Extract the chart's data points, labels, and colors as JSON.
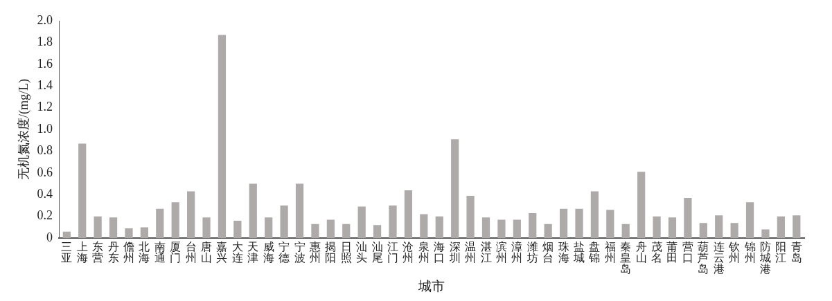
{
  "chart_data": {
    "type": "bar",
    "xlabel": "城市",
    "ylabel": "无机氮浓度/(mg/L)",
    "categories": [
      "三亚",
      "上海",
      "东营",
      "丹东",
      "儋州",
      "北海",
      "南通",
      "厦门",
      "台州",
      "唐山",
      "嘉兴",
      "大连",
      "天津",
      "威海",
      "宁德",
      "宁波",
      "惠州",
      "揭阳",
      "日照",
      "汕头",
      "汕尾",
      "江门",
      "沧州",
      "泉州",
      "海口",
      "深圳",
      "温州",
      "湛江",
      "滨州",
      "漳州",
      "潍坊",
      "烟台",
      "珠海",
      "盐城",
      "盘锦",
      "福州",
      "秦皇岛",
      "舟山",
      "茂名",
      "莆田",
      "营口",
      "葫芦岛",
      "连云港",
      "钦州",
      "锦州",
      "防城港",
      "阳江",
      "青岛"
    ],
    "values": [
      0.06,
      0.87,
      0.2,
      0.19,
      0.09,
      0.1,
      0.27,
      0.33,
      0.43,
      0.19,
      1.87,
      0.16,
      0.5,
      0.19,
      0.3,
      0.5,
      0.13,
      0.17,
      0.13,
      0.29,
      0.12,
      0.3,
      0.44,
      0.22,
      0.2,
      0.91,
      0.39,
      0.19,
      0.17,
      0.17,
      0.23,
      0.13,
      0.27,
      0.27,
      0.43,
      0.26,
      0.13,
      0.61,
      0.2,
      0.19,
      0.37,
      0.14,
      0.21,
      0.14,
      0.33,
      0.08,
      0.2,
      0.21
    ],
    "color": "#adaaa9",
    "ylim": [
      0,
      2.0
    ],
    "yticks": [
      {
        "value": 0,
        "label": "0"
      },
      {
        "value": 0.2,
        "label": "0.2"
      },
      {
        "value": 0.4,
        "label": "0.4"
      },
      {
        "value": 0.6,
        "label": "0.6"
      },
      {
        "value": 0.8,
        "label": "0.8"
      },
      {
        "value": 1.0,
        "label": "1.0"
      },
      {
        "value": 1.2,
        "label": "1.2"
      },
      {
        "value": 1.4,
        "label": "1.4"
      },
      {
        "value": 1.6,
        "label": "1.6"
      },
      {
        "value": 1.8,
        "label": "1.8"
      },
      {
        "value": 2.0,
        "label": "2.0"
      }
    ],
    "grid": false,
    "legend": false
  }
}
